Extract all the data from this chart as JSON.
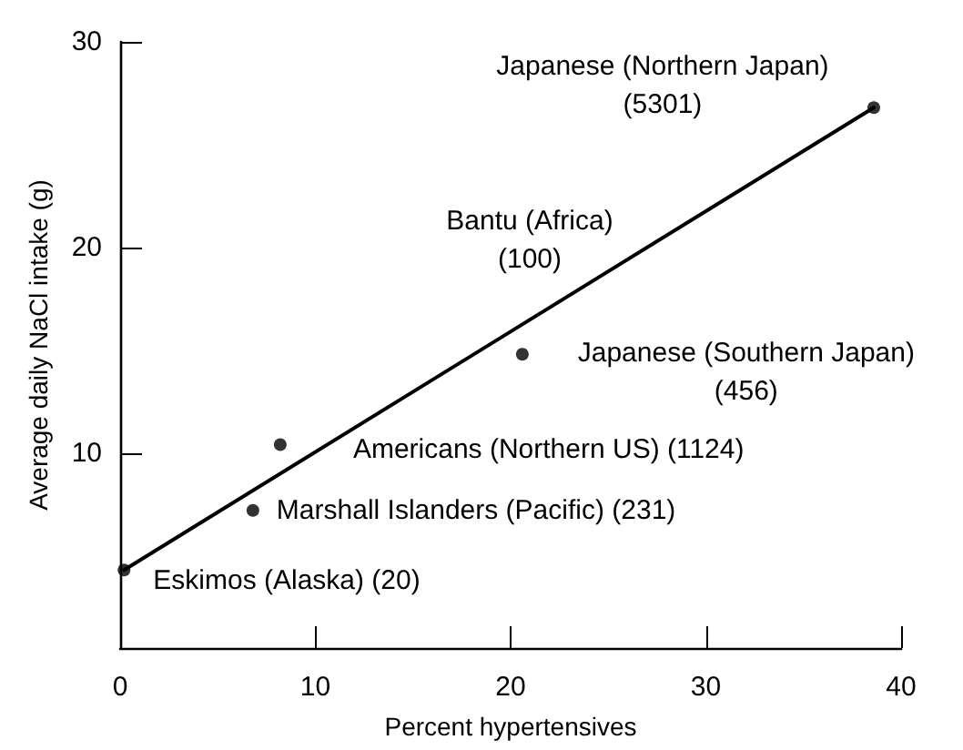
{
  "chart_data": {
    "type": "scatter",
    "xlabel": "Percent hypertensives",
    "ylabel": "Average daily NaCl intake (g)",
    "xlim": [
      0,
      40
    ],
    "xticks": [
      0,
      10,
      20,
      30,
      40
    ],
    "ylim": [
      0.5,
      30
    ],
    "yticks": [
      10,
      20,
      30
    ],
    "grid": false,
    "series": [
      {
        "color": "#000000",
        "marker": "circle",
        "x": [
          0.2,
          6.8,
          8.2,
          20.6,
          38.6
        ],
        "values": [
          4.3,
          7.2,
          10.4,
          14.8,
          26.8
        ]
      },
      {
        "type": "line",
        "color": "#000000",
        "marker": "none",
        "line_style": "solid",
        "x": [
          0.2,
          38.6
        ],
        "values": [
          4.3,
          26.8
        ]
      }
    ],
    "annotations": [
      {
        "text": "Eskimos (Alaska) (20)",
        "x": 0.2,
        "y": 4.3
      },
      {
        "text": "Marshall Islanders (Pacific) (231)",
        "x": 6.8,
        "y": 7.2
      },
      {
        "text": "Americans (Northern US) (1124)",
        "x": 8.2,
        "y": 10.4
      },
      {
        "text": "Japanese (Southern Japan)\n(456)",
        "x": 20.6,
        "y": 14.8
      },
      {
        "text": "Japanese (Northern Japan)\n(5301)",
        "x": 38.6,
        "y": 26.8
      },
      "Bantu (Africa)\n(100)"
    ]
  }
}
